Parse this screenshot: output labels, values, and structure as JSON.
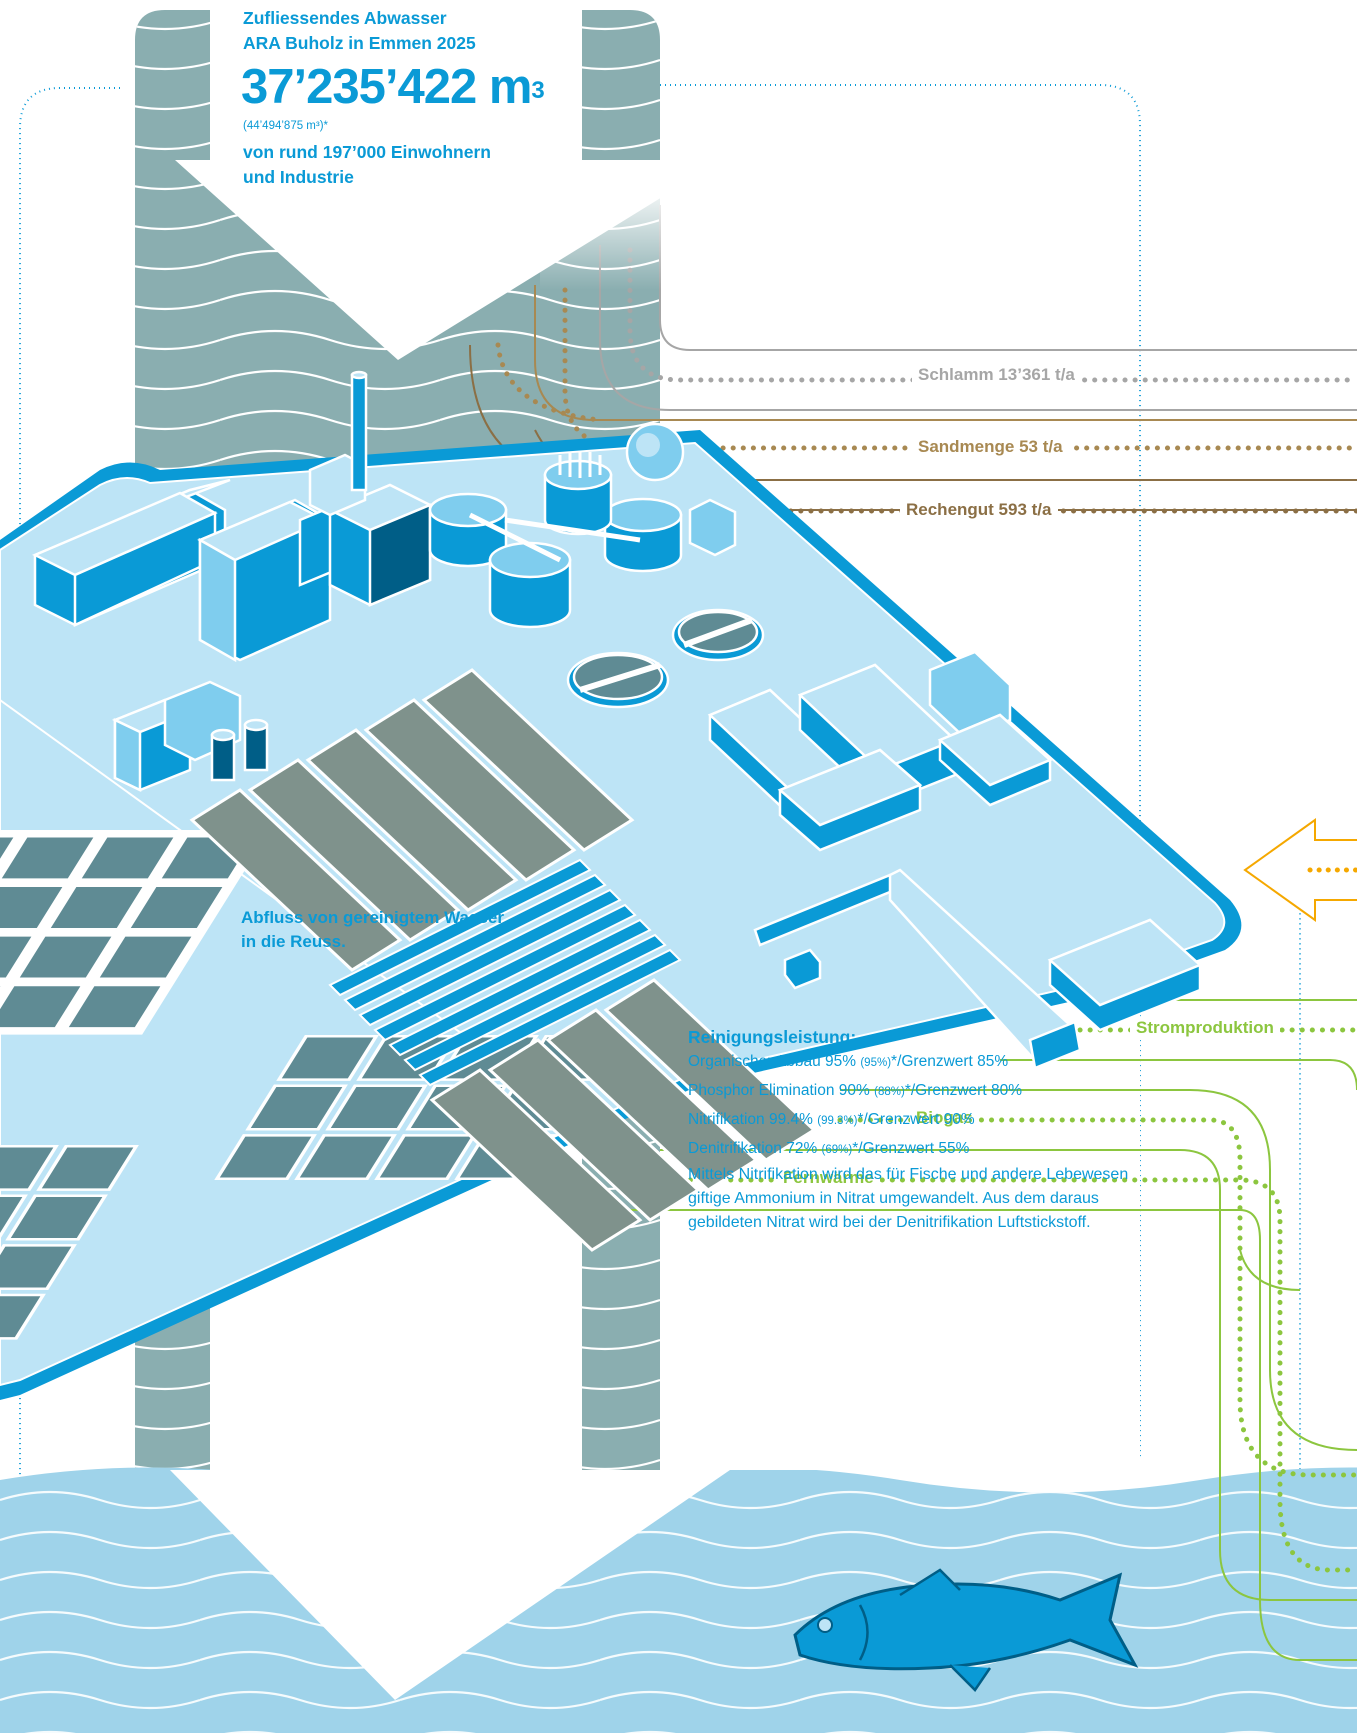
{
  "inflow": {
    "title_line1": "Zufliessendes Abwasser",
    "title_line2": "ARA Buholz in Emmen 2025",
    "volume": "37’235’422 m",
    "volume_exp": "3",
    "previous": "(44’494’875 m³)*",
    "population_line1": "von rund 197’000 Einwohnern",
    "population_line2": "und Industrie"
  },
  "outflow": {
    "line1": "Abfluss von gereinigtem Wasser",
    "line2": "in die Reuss."
  },
  "flows": {
    "schlamm": "Schlamm 13’361 t/a",
    "sandmenge": "Sandmenge 53 t/a",
    "rechengut": "Rechengut 593 t/a",
    "stromproduktion": "Stromproduktion",
    "biogas": "Biogas",
    "fernwaerme": "Fernwärme"
  },
  "performance": {
    "heading": "Reinigungsleistung:",
    "rows": [
      {
        "label": "Organischer Abbau 95%",
        "prev": "(95%)",
        "suffix": "*/Grenzwert 85%"
      },
      {
        "label": "Phosphor Elimination 90%",
        "prev": "(88%)",
        "suffix": "*/Grenzwert 80%"
      },
      {
        "label": "Nitrifikation 99.4%",
        "prev": "(99.3%)",
        "suffix": "*/Grenzwert 90%"
      },
      {
        "label": "Denitrifikation 72%",
        "prev": "(69%)",
        "suffix": "*/Grenzwert 55%"
      }
    ]
  },
  "nitrification_note": "Mittels Nitrifikation wird das für Fische und andere Lebewesen giftige Ammonium in Nitrat umgewandelt. Aus dem daraus gebildeten Nitrat wird bei der Denitrifikation Luftstickstoff.",
  "colors": {
    "primary_blue": "#0a9ad6",
    "plant_light": "#bde4f6",
    "water_teal": "#8aaeb0",
    "river_blue": "#9fd3ea",
    "sludge_grey": "#a6a6a6",
    "sand_brown": "#a88952",
    "rechengut_brown": "#8b6f45",
    "energy_green": "#8cc63f",
    "heat_orange": "#f5a800"
  }
}
